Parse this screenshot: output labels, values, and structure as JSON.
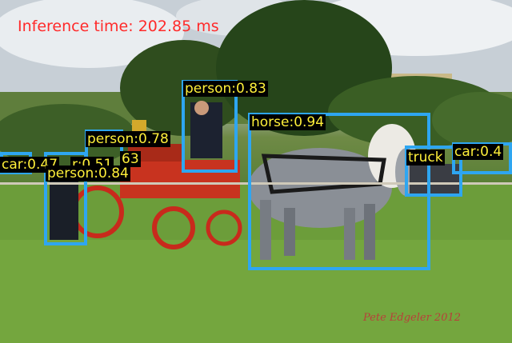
{
  "overlay": {
    "inference_label": "Inference time: 202.85 ms"
  },
  "detections": [
    {
      "label": "person:0.83"
    },
    {
      "label": "horse:0.94"
    },
    {
      "label": "person:0.78"
    },
    {
      "label": "car:0.47"
    },
    {
      "label": "r:0.51"
    },
    {
      "label": "63"
    },
    {
      "label": "person:0.84"
    },
    {
      "label": "truck"
    },
    {
      "label": "car:0.4"
    }
  ],
  "photo_credit": "Pete Edgeler 2012",
  "colors": {
    "box": "#2ea6f1",
    "label_text": "#ffef3a",
    "label_bg": "#000000",
    "inference_text": "#ff2a2a"
  }
}
